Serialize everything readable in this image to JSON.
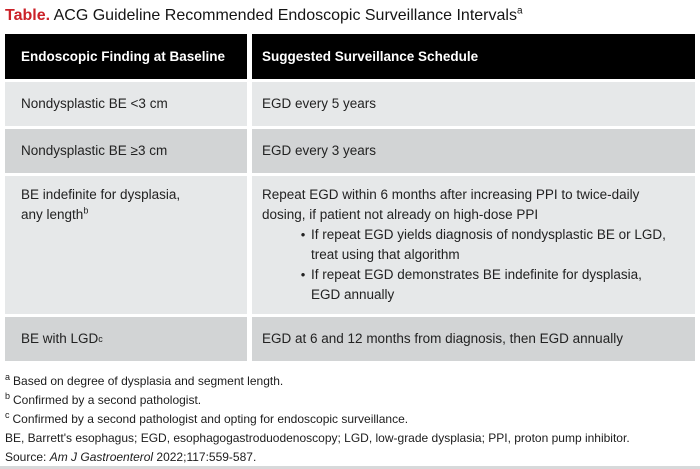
{
  "colors": {
    "accent_red": "#cb2128",
    "header_bg": "#000000",
    "row_light": "#e6e8e9",
    "row_dark": "#d2d4d5"
  },
  "title": {
    "label": "Table.",
    "text": " ACG Guideline Recommended Endoscopic Surveillance Intervals",
    "sup": "a"
  },
  "table": {
    "bullet_char": "•",
    "headers": [
      "Endoscopic Finding at Baseline",
      "Suggested Surveillance Schedule"
    ],
    "rows": [
      {
        "finding": "Nondysplastic BE <3 cm",
        "schedule": "EGD every 5 years"
      },
      {
        "finding": "Nondysplastic BE ≥3 cm",
        "schedule": "EGD every 3 years"
      },
      {
        "finding_lines": [
          "BE indefinite for dysplasia,",
          "any length"
        ],
        "finding_sup": "b",
        "schedule_paragraph": [
          "Repeat EGD within 6 months after increasing PPI to twice-daily",
          "dosing, if patient not already on high-dose PPI"
        ],
        "bullets": [
          [
            "If repeat EGD yields diagnosis of nondysplastic BE or LGD,",
            "treat using that algorithm"
          ],
          [
            "If repeat EGD demonstrates BE indefinite for dysplasia,",
            "EGD annually"
          ]
        ]
      },
      {
        "finding": "BE with LGD",
        "finding_sup": "c",
        "schedule": "EGD at 6 and 12 months from diagnosis, then EGD annually"
      }
    ]
  },
  "footnotes": [
    {
      "sup": "a",
      "text": "Based on degree of dysplasia and segment length."
    },
    {
      "sup": "b",
      "text": "Confirmed by a second pathologist."
    },
    {
      "sup": "c",
      "text": "Confirmed by a second pathologist and opting for endoscopic surveillance."
    },
    {
      "sup": "",
      "text": "BE, Barrett's esophagus; EGD, esophagogastroduodenoscopy; LGD, low-grade dysplasia; PPI, proton pump inhibitor."
    }
  ],
  "source": {
    "prefix": "Source: ",
    "journal": "Am J Gastroenterol",
    "rest": " 2022;117:559-587."
  }
}
